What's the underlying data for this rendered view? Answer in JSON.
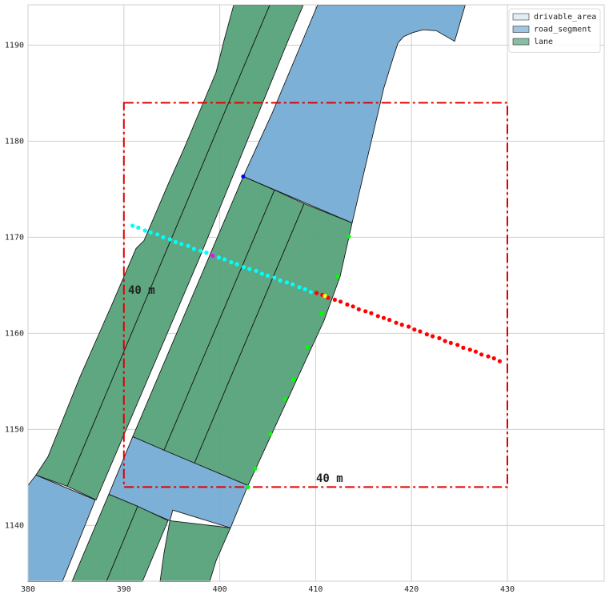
{
  "chart_data": {
    "type": "map",
    "xlim": [
      380,
      440.1
    ],
    "ylim": [
      1134.2,
      1194.2
    ],
    "xticks": [
      380,
      390,
      400,
      410,
      420,
      430
    ],
    "yticks": [
      1140,
      1150,
      1160,
      1170,
      1180,
      1190
    ],
    "grid": true,
    "legend": "upper right",
    "layers": [
      {
        "name": "drivable_area",
        "color": "#d4e5ef",
        "polygons": []
      },
      {
        "name": "road_segment",
        "color": "#76acd4",
        "polygons": [
          {
            "x": [
              410.2,
              425.6,
              424.5,
              422.6,
              421.2,
              420.1,
              419.2,
              418.6,
              418.0,
              417.1,
              413.81,
              402.45,
              405.5
            ],
            "y": [
              1194.17,
              1194.17,
              1190.4,
              1191.5,
              1191.6,
              1191.3,
              1190.9,
              1190.25,
              1188.4,
              1185.5,
              1171.5,
              1176.33,
              1183.0
            ]
          },
          {
            "x": [
              390.93,
              402.95,
              401.12,
              395.1,
              394.8,
              388.43
            ],
            "y": [
              1149.25,
              1144.17,
              1139.75,
              1141.6,
              1140.5,
              1143.25
            ]
          },
          {
            "x": [
              380,
              380.83,
              387.01,
              383.59,
              380
            ],
            "y": [
              1144.17,
              1145.25,
              1142.67,
              1134.17,
              1134.17
            ]
          }
        ]
      },
      {
        "name": "lane",
        "color": "#55a27a",
        "polygons": [
          {
            "x": [
              401.45,
              405.21,
              384.09,
              380.83,
              382.09,
              385.43,
              388.76,
              391.27,
              392.1,
              394.61,
              396.28,
              399.62,
              400.45
            ],
            "y": [
              1194.17,
              1194.17,
              1144.08,
              1145.25,
              1147.17,
              1155.5,
              1163.0,
              1168.83,
              1169.67,
              1175.5,
              1179.25,
              1187.17,
              1190.5
            ]
          },
          {
            "x": [
              405.21,
              408.71,
              406.96,
              397.95,
              387.1,
              384.09
            ],
            "y": [
              1194.17,
              1194.17,
              1190.08,
              1168.0,
              1142.67,
              1144.08
            ]
          },
          {
            "x": [
              402.45,
              405.71,
              394.19,
              390.93
            ],
            "y": [
              1176.33,
              1174.92,
              1147.83,
              1149.25
            ]
          },
          {
            "x": [
              405.71,
              408.8,
              397.36,
              394.19
            ],
            "y": [
              1174.92,
              1173.5,
              1146.5,
              1147.83
            ]
          },
          {
            "x": [
              408.8,
              413.81,
              412.55,
              410.88,
              402.95,
              397.36
            ],
            "y": [
              1173.5,
              1171.5,
              1165.92,
              1161.33,
              1144.17,
              1146.5
            ]
          },
          {
            "x": [
              388.43,
              391.44,
              388.18,
              384.59
            ],
            "y": [
              1143.25,
              1142.0,
              1134.17,
              1134.17
            ]
          },
          {
            "x": [
              391.44,
              394.61,
              391.94,
              388.18
            ],
            "y": [
              1142.0,
              1140.5,
              1134.17,
              1134.17
            ]
          },
          {
            "x": [
              394.8,
              401.12,
              399.62,
              398.95,
              393.77,
              394.19
            ],
            "y": [
              1140.5,
              1139.75,
              1136.33,
              1134.17,
              1134.17,
              1137.17
            ]
          }
        ]
      }
    ],
    "box": {
      "x": [
        390,
        430
      ],
      "y": [
        1144,
        1184
      ],
      "color": "#e00000"
    },
    "annotations": [
      "40 m",
      "40 m"
    ],
    "points": [
      {
        "color": "#00ffff",
        "x": [
          390.9,
          391.5,
          392.2,
          392.8,
          393.5,
          394.1,
          394.8,
          395.4,
          396.0,
          396.7,
          397.3,
          398.0,
          398.6,
          399.3,
          399.9,
          400.5,
          401.2,
          401.8,
          402.5,
          403.1,
          403.8,
          404.4,
          405.0,
          405.7,
          406.3,
          407.0,
          407.6,
          408.3,
          408.9,
          409.5
        ],
        "y": [
          1171.2,
          1171.0,
          1170.7,
          1170.5,
          1170.3,
          1170.0,
          1169.8,
          1169.5,
          1169.3,
          1169.1,
          1168.8,
          1168.6,
          1168.4,
          1168.1,
          1167.9,
          1167.7,
          1167.4,
          1167.2,
          1166.9,
          1166.7,
          1166.5,
          1166.2,
          1166.0,
          1165.8,
          1165.5,
          1165.3,
          1165.1,
          1164.8,
          1164.6,
          1164.3
        ]
      },
      {
        "color": "#ff0000",
        "x": [
          410.1,
          410.7,
          411.3,
          412.0,
          412.6,
          413.3,
          413.9,
          414.5,
          415.2,
          415.8,
          416.5,
          417.1,
          417.7,
          418.4,
          419.0,
          419.7,
          420.3,
          420.9,
          421.6,
          422.2,
          422.9,
          423.5,
          424.1,
          424.8,
          425.4,
          426.1,
          426.7,
          427.3,
          428.0,
          428.6,
          429.2
        ],
        "y": [
          1164.2,
          1164.0,
          1163.7,
          1163.5,
          1163.3,
          1163.0,
          1162.8,
          1162.5,
          1162.3,
          1162.1,
          1161.8,
          1161.6,
          1161.4,
          1161.1,
          1160.9,
          1160.7,
          1160.4,
          1160.2,
          1159.9,
          1159.7,
          1159.5,
          1159.2,
          1159.0,
          1158.8,
          1158.5,
          1158.3,
          1158.1,
          1157.8,
          1157.6,
          1157.4,
          1157.1
        ]
      },
      {
        "color": "#00ff00",
        "x": [
          413.47,
          412.3,
          410.63,
          409.13,
          407.71,
          406.8,
          405.29,
          403.7,
          402.95
        ],
        "y": [
          1170.08,
          1165.92,
          1162.08,
          1158.58,
          1155.17,
          1153.17,
          1149.5,
          1145.92,
          1144.0
        ]
      },
      {
        "color": "#ff00ff",
        "x": [
          399.28
        ],
        "y": [
          1168.08
        ]
      },
      {
        "color": "#ffff00",
        "x": [
          410.97
        ],
        "y": [
          1163.9
        ]
      },
      {
        "color": "#0000ff",
        "x": [
          402.45
        ],
        "y": [
          1176.33
        ]
      }
    ]
  }
}
